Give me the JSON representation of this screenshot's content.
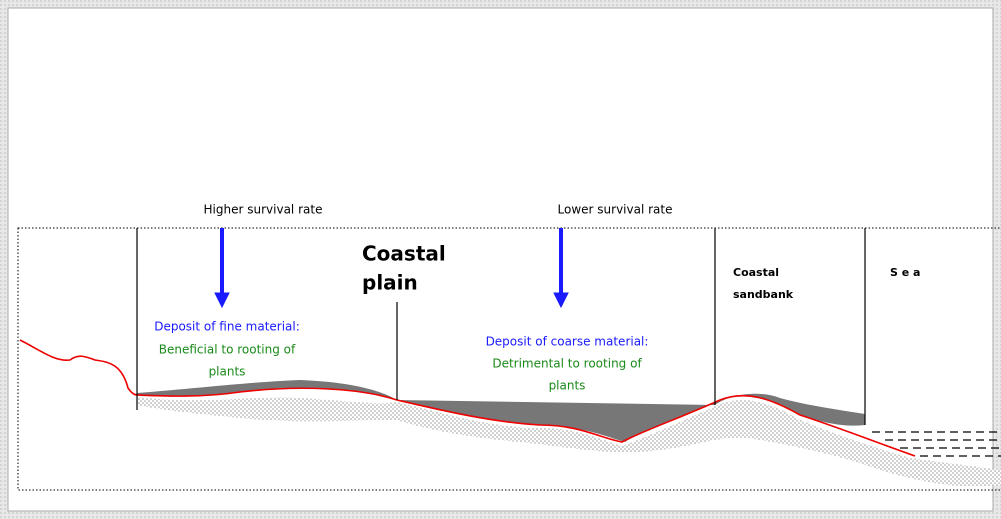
{
  "higher_label": "Higher survival rate",
  "lower_label": "Lower survival rate",
  "coastal_plain": [
    "Coastal",
    "plain"
  ],
  "coastal_sandbank": [
    "Coastal",
    "sandbank"
  ],
  "sea": "S e a",
  "fine_deposit": {
    "title": "Deposit of fine material:",
    "effect": [
      "Beneficial to rooting of",
      "plants"
    ]
  },
  "coarse_deposit": {
    "title": "Deposit of coarse material:",
    "effect": [
      "Detrimental to rooting of",
      "plants"
    ]
  }
}
